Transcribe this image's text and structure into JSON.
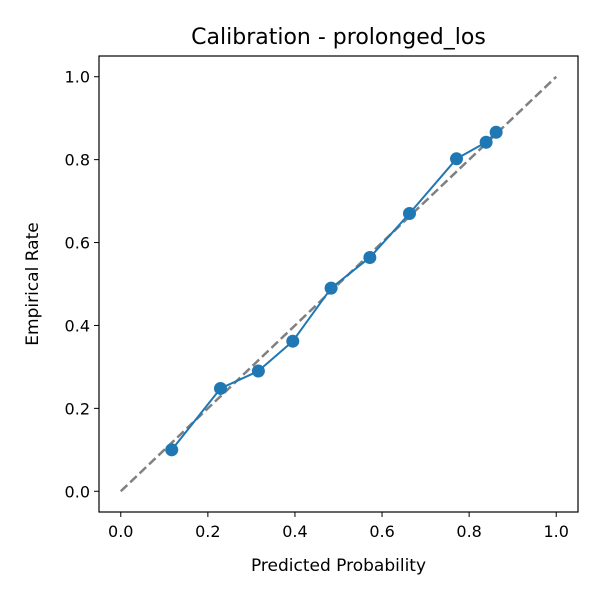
{
  "chart_data": {
    "type": "line",
    "title": "Calibration - prolonged_los",
    "xlabel": "Predicted Probability",
    "ylabel": "Empirical Rate",
    "xlim": [
      -0.05,
      1.05
    ],
    "ylim": [
      -0.05,
      1.05
    ],
    "xticks": [
      "0.0",
      "0.2",
      "0.4",
      "0.6",
      "0.8",
      "1.0"
    ],
    "yticks": [
      "0.0",
      "0.2",
      "0.4",
      "0.6",
      "0.8",
      "1.0"
    ],
    "grid": false,
    "legend": "none",
    "series": [
      {
        "style": "solid-line-with-circle-markers",
        "color": "#1f77b4",
        "x": [
          0.117,
          0.229,
          0.316,
          0.395,
          0.483,
          0.572,
          0.663,
          0.771,
          0.839,
          0.862
        ],
        "y": [
          0.1,
          0.248,
          0.29,
          0.362,
          0.49,
          0.564,
          0.67,
          0.802,
          0.842,
          0.866
        ]
      }
    ],
    "reference_line": {
      "style": "dashed",
      "color": "#808080",
      "x": [
        0,
        1
      ],
      "y": [
        0,
        1
      ]
    }
  }
}
